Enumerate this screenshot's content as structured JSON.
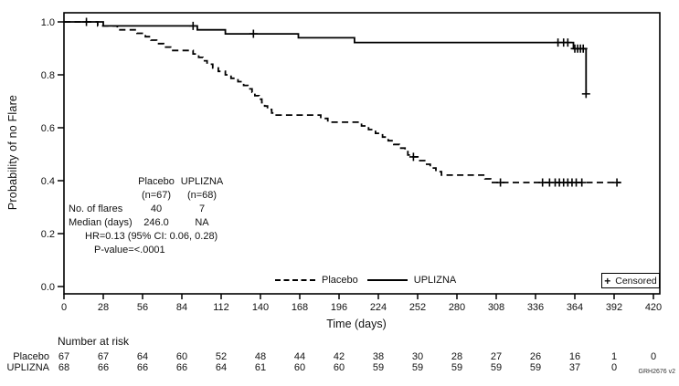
{
  "figure": {
    "y_axis_label": "Probability of no Flare",
    "x_axis_label": "Time (days)",
    "watermark": "GRH2676 v2",
    "colors": {
      "line": "#000000",
      "background": "#ffffff"
    }
  },
  "stats_table": {
    "header": {
      "col1": "Placebo",
      "col2": "UPLIZNA"
    },
    "subheader": {
      "col1": "(n=67)",
      "col2": "(n=68)"
    },
    "rows": [
      {
        "label": "No. of flares",
        "col1": "40",
        "col2": "7"
      },
      {
        "label": "Median (days)",
        "col1": "246.0",
        "col2": "NA"
      }
    ],
    "hr_text": "HR=0.13 (95% CI: 0.06, 0.28)",
    "p_text": "P-value=<.0001"
  },
  "legend": {
    "placebo_label": "Placebo",
    "uplizna_label": "UPLIZNA",
    "censored_symbol": "+",
    "censored_label": "Censored"
  },
  "risk_table": {
    "title": "Number at risk",
    "rows": [
      {
        "label": "Placebo",
        "values": [
          67,
          67,
          64,
          60,
          52,
          48,
          44,
          42,
          38,
          30,
          28,
          27,
          26,
          16,
          1,
          0
        ]
      },
      {
        "label": "UPLIZNA",
        "values": [
          68,
          66,
          66,
          66,
          64,
          61,
          60,
          60,
          59,
          59,
          59,
          59,
          59,
          37,
          0
        ]
      }
    ]
  },
  "chart_data": {
    "type": "line",
    "subtype": "kaplan-meier-step",
    "title": "",
    "xlabel": "Time (days)",
    "ylabel": "Probability of no Flare",
    "xlim": [
      0,
      424
    ],
    "ylim": [
      0.0,
      1.03
    ],
    "grid": false,
    "legend_position": "inside-bottom",
    "x_ticks": [
      0,
      28,
      56,
      84,
      112,
      140,
      168,
      196,
      224,
      252,
      280,
      308,
      336,
      364,
      392,
      420
    ],
    "y_ticks": [
      0.0,
      0.2,
      0.4,
      0.6,
      0.8,
      1.0
    ],
    "y_tick_labels": [
      "0.0",
      "0.2",
      "0.4",
      "0.6",
      "0.8",
      "1.0"
    ],
    "series": [
      {
        "name": "Placebo",
        "style": "dashed",
        "end_day": 397,
        "steps": [
          [
            0,
            1.0
          ],
          [
            24,
            0.985
          ],
          [
            38,
            0.97
          ],
          [
            52,
            0.957
          ],
          [
            58,
            0.944
          ],
          [
            62,
            0.931
          ],
          [
            66,
            0.918
          ],
          [
            71,
            0.905
          ],
          [
            76,
            0.892
          ],
          [
            92,
            0.879
          ],
          [
            96,
            0.866
          ],
          [
            99,
            0.853
          ],
          [
            102,
            0.84
          ],
          [
            106,
            0.826
          ],
          [
            110,
            0.813
          ],
          [
            115,
            0.8
          ],
          [
            119,
            0.787
          ],
          [
            124,
            0.774
          ],
          [
            128,
            0.76
          ],
          [
            131,
            0.747
          ],
          [
            134,
            0.734
          ],
          [
            136,
            0.721
          ],
          [
            139,
            0.708
          ],
          [
            141,
            0.695
          ],
          [
            143,
            0.682
          ],
          [
            145,
            0.669
          ],
          [
            148,
            0.656
          ],
          [
            150,
            0.648
          ],
          [
            183,
            0.635
          ],
          [
            188,
            0.621
          ],
          [
            212,
            0.607
          ],
          [
            217,
            0.593
          ],
          [
            222,
            0.579
          ],
          [
            227,
            0.565
          ],
          [
            231,
            0.551
          ],
          [
            235,
            0.537
          ],
          [
            239,
            0.523
          ],
          [
            243,
            0.51
          ],
          [
            245,
            0.497
          ],
          [
            247,
            0.49
          ],
          [
            253,
            0.476
          ],
          [
            257,
            0.462
          ],
          [
            261,
            0.448
          ],
          [
            265,
            0.434
          ],
          [
            269,
            0.421
          ],
          [
            300,
            0.407
          ],
          [
            304,
            0.393
          ]
        ],
        "censored": [
          [
            249,
            0.49
          ],
          [
            311,
            0.393
          ],
          [
            341,
            0.393
          ],
          [
            346,
            0.393
          ],
          [
            350,
            0.393
          ],
          [
            353,
            0.393
          ],
          [
            356,
            0.393
          ],
          [
            359,
            0.393
          ],
          [
            362,
            0.393
          ],
          [
            365,
            0.393
          ],
          [
            369,
            0.393
          ],
          [
            394,
            0.393
          ]
        ]
      },
      {
        "name": "UPLIZNA",
        "style": "solid",
        "end_day": 372,
        "steps": [
          [
            0,
            1.0
          ],
          [
            28,
            0.985
          ],
          [
            95,
            0.97
          ],
          [
            115,
            0.955
          ],
          [
            167,
            0.94
          ],
          [
            207,
            0.922
          ],
          [
            363,
            0.899
          ],
          [
            372,
            0.728
          ]
        ],
        "censored": [
          [
            16,
            1.0
          ],
          [
            92,
            0.985
          ],
          [
            135,
            0.955
          ],
          [
            352,
            0.922
          ],
          [
            356,
            0.922
          ],
          [
            359,
            0.922
          ],
          [
            364,
            0.899
          ],
          [
            366,
            0.899
          ],
          [
            368,
            0.899
          ],
          [
            370,
            0.899
          ],
          [
            372,
            0.728
          ]
        ]
      }
    ]
  }
}
